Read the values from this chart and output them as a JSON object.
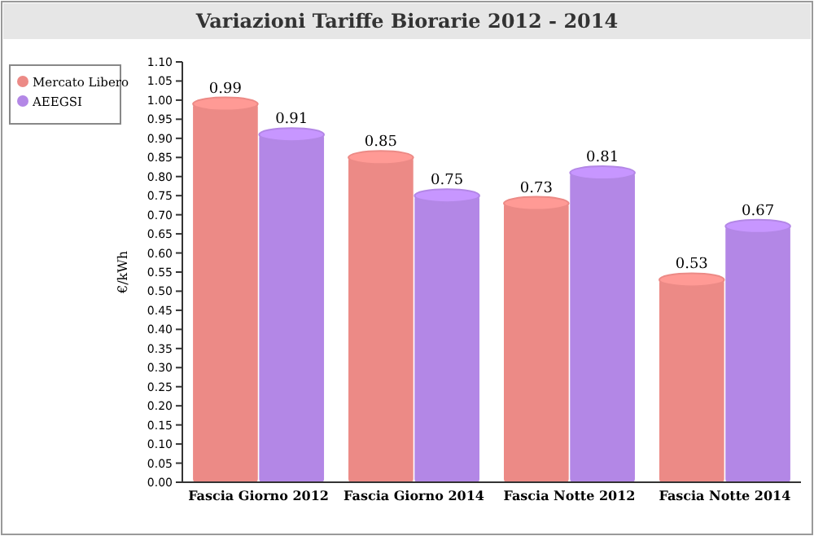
{
  "chart_data": {
    "type": "bar",
    "title": "Variazioni Tariffe Biorarie 2012 - 2014",
    "ylabel": "€/kWh",
    "categories": [
      "Fascia Giorno 2012",
      "Fascia Giorno 2014",
      "Fascia Notte 2012",
      "Fascia Notte 2014"
    ],
    "series": [
      {
        "name": "Mercato Libero",
        "color": "#ec8a86",
        "values": [
          0.99,
          0.85,
          0.73,
          0.53
        ]
      },
      {
        "name": "AEEGSI",
        "color": "#b387e6",
        "values": [
          0.91,
          0.75,
          0.81,
          0.67
        ]
      }
    ],
    "ylim": [
      0,
      1.1
    ],
    "yticks": [
      {
        "value": 0,
        "label": "0.00"
      },
      {
        "value": 0.05,
        "label": "0.05"
      },
      {
        "value": 0.1,
        "label": "0.10"
      },
      {
        "value": 0.15,
        "label": "0.15"
      },
      {
        "value": 0.2,
        "label": "0.20"
      },
      {
        "value": 0.25,
        "label": "0.25"
      },
      {
        "value": 0.3,
        "label": "0.30"
      },
      {
        "value": 0.35,
        "label": "0.35"
      },
      {
        "value": 0.4,
        "label": "0.40"
      },
      {
        "value": 0.45,
        "label": "0.45"
      },
      {
        "value": 0.5,
        "label": "0.50"
      },
      {
        "value": 0.55,
        "label": "0.55"
      },
      {
        "value": 0.6,
        "label": "0.60"
      },
      {
        "value": 0.65,
        "label": "0.65"
      },
      {
        "value": 0.7,
        "label": "0.70"
      },
      {
        "value": 0.75,
        "label": "0.75"
      },
      {
        "value": 0.8,
        "label": "0.80"
      },
      {
        "value": 0.85,
        "label": "0.85"
      },
      {
        "value": 0.9,
        "label": "0.90"
      },
      {
        "value": 0.95,
        "label": "0.95"
      },
      {
        "value": 1,
        "label": "1.00"
      },
      {
        "value": 1.05,
        "label": "1.05"
      },
      {
        "value": 1.1,
        "label": "1.10"
      }
    ],
    "data_labels": true,
    "legend": "top left",
    "grid": false
  }
}
